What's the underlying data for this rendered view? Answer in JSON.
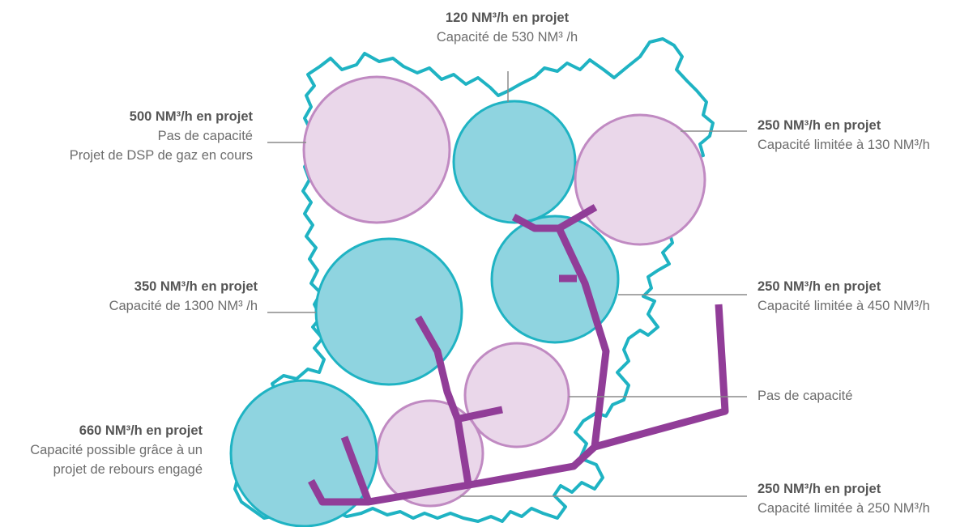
{
  "colors": {
    "border": "#1fb3c3",
    "teal_fill": "#8fd4e0",
    "teal_stroke": "#1fb3c3",
    "pink_fill": "#ead7ea",
    "pink_stroke": "#c08ac2",
    "pipeline": "#913d98",
    "leader": "#8a8a8a",
    "text": "#6d6d6d"
  },
  "zones": [
    {
      "id": "top-center",
      "status": "capacity",
      "heading": "120 NM³/h en projet",
      "lines": [
        "Capacité de 530 NM³ /h"
      ]
    },
    {
      "id": "top-left",
      "status": "no-capacity",
      "heading": "500 NM³/h en projet",
      "lines": [
        "Pas de capacité",
        "Projet de DSP de gaz en cours"
      ]
    },
    {
      "id": "top-right",
      "status": "limited",
      "heading": "250 NM³/h en projet",
      "lines": [
        "Capacité limitée à 130 NM³/h"
      ]
    },
    {
      "id": "center-left",
      "status": "capacity",
      "heading": "350 NM³/h en projet",
      "lines": [
        "Capacité de 1300 NM³ /h"
      ]
    },
    {
      "id": "center-right",
      "status": "capacity",
      "heading": "250 NM³/h en projet",
      "lines": [
        "Capacité limitée à 450 NM³/h"
      ]
    },
    {
      "id": "lower-middle",
      "status": "no-capacity",
      "heading": "",
      "lines": [
        "Pas de capacité"
      ]
    },
    {
      "id": "bottom-left",
      "status": "capacity",
      "heading": "660 NM³/h en projet",
      "lines": [
        "Capacité possible grâce à un",
        "projet de rebours engagé"
      ]
    },
    {
      "id": "bottom-middle",
      "status": "limited",
      "heading": "250 NM³/h en projet",
      "lines": [
        "Capacité limitée à 250 NM³/h"
      ]
    }
  ]
}
